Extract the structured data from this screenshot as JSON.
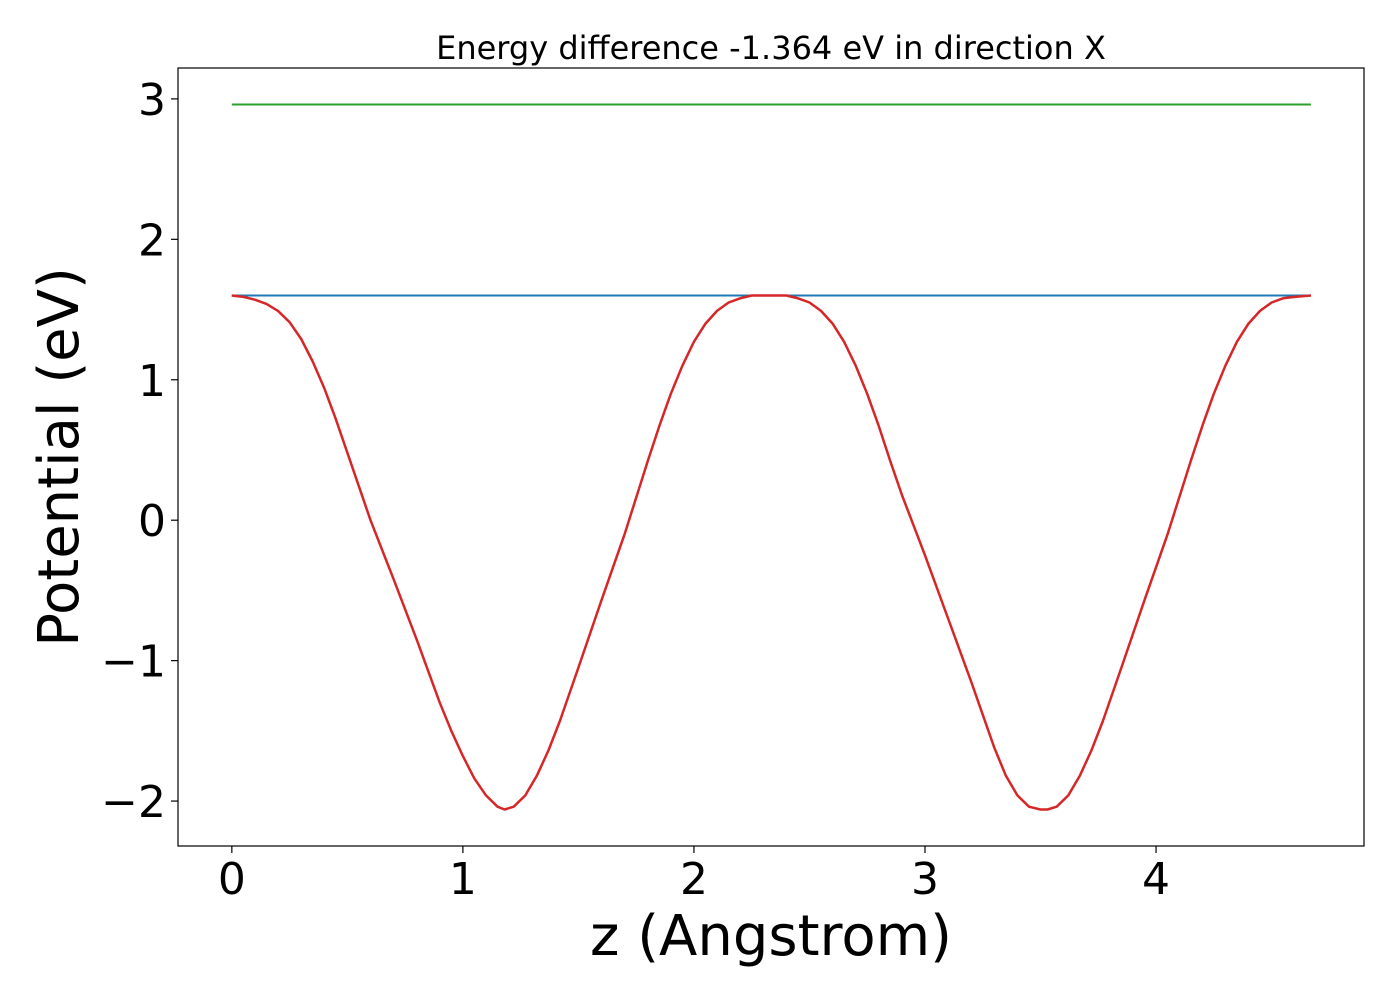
{
  "chart_data": {
    "type": "line",
    "title": "Energy difference -1.364 eV in direction X",
    "xlabel": "z (Angstrom)",
    "ylabel": "Potential (eV)",
    "xlim": [
      -0.233,
      4.9
    ],
    "ylim": [
      -2.32,
      3.22
    ],
    "xticks": [
      0,
      1,
      2,
      3,
      4
    ],
    "yticks": [
      -2,
      -1,
      0,
      1,
      2,
      3
    ],
    "xtick_labels": [
      "0",
      "1",
      "2",
      "3",
      "4"
    ],
    "ytick_labels": [
      "−2",
      "−1",
      "0",
      "1",
      "2",
      "3"
    ],
    "grid": false,
    "legend": "none",
    "series": [
      {
        "color": "#d62728",
        "x": [
          0.0,
          0.05,
          0.1,
          0.15,
          0.2,
          0.25,
          0.3,
          0.35,
          0.4,
          0.45,
          0.5,
          0.6,
          0.7,
          0.8,
          0.9,
          0.95,
          1.0,
          1.05,
          1.1,
          1.15,
          1.18,
          1.22,
          1.27,
          1.32,
          1.37,
          1.42,
          1.5,
          1.6,
          1.7,
          1.8,
          1.85,
          1.9,
          1.95,
          2.0,
          2.05,
          2.1,
          2.15,
          2.2,
          2.25,
          2.3,
          2.35,
          2.4,
          2.45,
          2.5,
          2.55,
          2.6,
          2.65,
          2.7,
          2.75,
          2.8,
          2.85,
          2.9,
          3.0,
          3.1,
          3.2,
          3.3,
          3.35,
          3.4,
          3.45,
          3.5,
          3.53,
          3.57,
          3.62,
          3.67,
          3.72,
          3.77,
          3.85,
          3.95,
          4.05,
          4.15,
          4.2,
          4.25,
          4.3,
          4.35,
          4.4,
          4.45,
          4.5,
          4.55,
          4.6,
          4.67
        ],
        "y": [
          1.6,
          1.59,
          1.57,
          1.54,
          1.49,
          1.41,
          1.29,
          1.13,
          0.94,
          0.72,
          0.48,
          0.0,
          -0.42,
          -0.85,
          -1.3,
          -1.5,
          -1.68,
          -1.84,
          -1.96,
          -2.04,
          -2.06,
          -2.04,
          -1.96,
          -1.82,
          -1.64,
          -1.43,
          -1.05,
          -0.57,
          -0.1,
          0.42,
          0.67,
          0.9,
          1.1,
          1.27,
          1.4,
          1.49,
          1.55,
          1.58,
          1.6,
          1.6,
          1.6,
          1.6,
          1.58,
          1.55,
          1.49,
          1.4,
          1.27,
          1.1,
          0.9,
          0.67,
          0.42,
          0.18,
          -0.25,
          -0.7,
          -1.15,
          -1.62,
          -1.82,
          -1.96,
          -2.04,
          -2.06,
          -2.06,
          -2.04,
          -1.96,
          -1.82,
          -1.64,
          -1.43,
          -1.05,
          -0.57,
          -0.1,
          0.42,
          0.67,
          0.9,
          1.1,
          1.27,
          1.4,
          1.49,
          1.55,
          1.58,
          1.59,
          1.6
        ]
      },
      {
        "color": "#1f77b4",
        "x": [
          0.0,
          4.67
        ],
        "y": [
          1.6,
          1.6
        ]
      },
      {
        "color": "#2ca02c",
        "x": [
          0.0,
          4.67
        ],
        "y": [
          2.96,
          2.96
        ]
      }
    ]
  }
}
